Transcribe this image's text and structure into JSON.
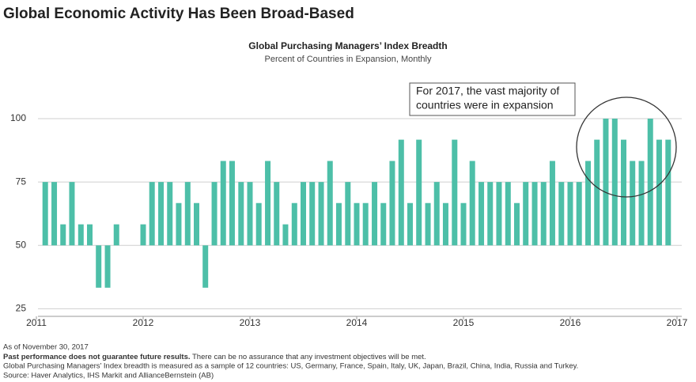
{
  "chart_data": {
    "type": "bar",
    "headline": "Global Economic Activity Has Been Broad-Based",
    "title": "Global Purchasing Managers’ Index Breadth",
    "subtitle": "Percent of Countries in Expansion, Monthly",
    "annotation": [
      "For 2017, the vast majority of",
      "countries were in expansion"
    ],
    "color": "#4dbfa8",
    "bar_base": 50,
    "x": [
      2011.083,
      2011.167,
      2011.25,
      2011.333,
      2011.417,
      2011.5,
      2011.583,
      2011.667,
      2011.75,
      2011.833,
      2011.917,
      2012,
      2012.083,
      2012.167,
      2012.25,
      2012.333,
      2012.417,
      2012.5,
      2012.583,
      2012.667,
      2012.75,
      2012.833,
      2012.917,
      2013,
      2013.083,
      2013.167,
      2013.25,
      2013.333,
      2013.417,
      2013.5,
      2013.583,
      2013.667,
      2013.75,
      2013.833,
      2013.917,
      2014,
      2014.083,
      2014.167,
      2014.25,
      2014.333,
      2014.417,
      2014.5,
      2014.583,
      2014.667,
      2014.75,
      2014.833,
      2014.917,
      2015,
      2015.083,
      2015.167,
      2015.25,
      2015.333,
      2015.417,
      2015.5,
      2015.583,
      2015.667,
      2015.75,
      2015.833,
      2015.917,
      2016,
      2016.083,
      2016.167,
      2016.25,
      2016.333,
      2016.417,
      2016.5,
      2016.583,
      2016.667,
      2016.75,
      2016.833,
      2016.917
    ],
    "values": [
      75,
      75,
      58.3,
      75,
      58.3,
      58.3,
      33.3,
      33.3,
      58.3,
      50,
      50,
      58.3,
      75,
      75,
      75,
      66.7,
      75,
      66.7,
      33.3,
      75,
      83.3,
      83.3,
      75,
      75,
      66.7,
      83.3,
      75,
      58.3,
      66.7,
      75,
      75,
      75,
      83.3,
      66.7,
      75,
      66.7,
      66.7,
      75,
      66.7,
      83.3,
      91.7,
      66.7,
      91.7,
      66.7,
      75,
      66.7,
      91.7,
      66.7,
      83.3,
      75,
      75,
      75,
      75,
      66.7,
      75,
      75,
      75,
      83.3,
      75,
      75,
      75,
      83.3,
      91.7,
      100,
      100,
      91.7,
      83.3,
      83.3,
      100,
      91.7,
      91.7
    ],
    "xlim": [
      2011,
      2017
    ],
    "xticks": [
      2011,
      2012,
      2013,
      2014,
      2015,
      2016,
      2017
    ],
    "ylim": [
      22,
      100
    ],
    "yticks": [
      25,
      50,
      75,
      100
    ],
    "grid": true,
    "notes": {
      "date": "As of November 30, 2017",
      "disclaimer_bold": "Past performance does not guarantee future results.",
      "disclaimer": " There can be no assurance that any investment objectives will be met.",
      "method": "Global Purchasing Managers’ Index breadth is measured as a sample of 12 countries: US, Germany, France, Spain, Italy, UK, Japan, Brazil, China, India, Russia and Turkey.",
      "source": "Source: Haver Analytics, IHS Markit and AllianceBernstein (AB)"
    }
  }
}
